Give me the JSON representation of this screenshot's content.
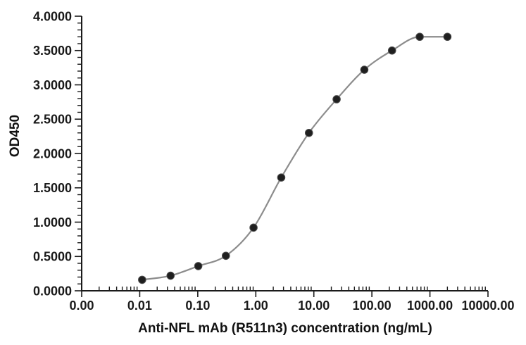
{
  "style": {
    "background": "#ffffff",
    "axis_color": "#1a1a1a",
    "text_color": "#1a1a1a",
    "marker_edge": "#4d4d4d"
  },
  "chart_data": {
    "type": "scatter",
    "title": "",
    "xlabel": "Anti-NFL mAb (R511n3) concentration (ng/mL)",
    "ylabel": "OD450",
    "x_scale": "log",
    "x_range": [
      0.001,
      10000
    ],
    "y_range": [
      0,
      4
    ],
    "y_tick_step": 0.5,
    "y_minor_step": 0.1,
    "x_tick_labels": [
      "0.00",
      "0.01",
      "0.10",
      "1.00",
      "10.00",
      "100.00",
      "1000.00",
      "10000.00"
    ],
    "y_tick_labels": [
      "0.0000",
      "0.5000",
      "1.0000",
      "1.5000",
      "2.0000",
      "2.5000",
      "3.0000",
      "3.5000",
      "4.0000"
    ],
    "grid": false,
    "legend": "none",
    "series": [
      {
        "name": "Anti-NFL mAb (R511n3)",
        "x": [
          0.011,
          0.034,
          0.102,
          0.305,
          0.914,
          2.743,
          8.23,
          24.69,
          74.07,
          222.2,
          666.7,
          2000
        ],
        "y": [
          0.16,
          0.22,
          0.36,
          0.51,
          0.92,
          1.65,
          2.3,
          2.79,
          3.22,
          3.5,
          3.7,
          3.7
        ],
        "line_color": "#8c8c8c",
        "marker_color": "#1f1f1f"
      }
    ]
  }
}
